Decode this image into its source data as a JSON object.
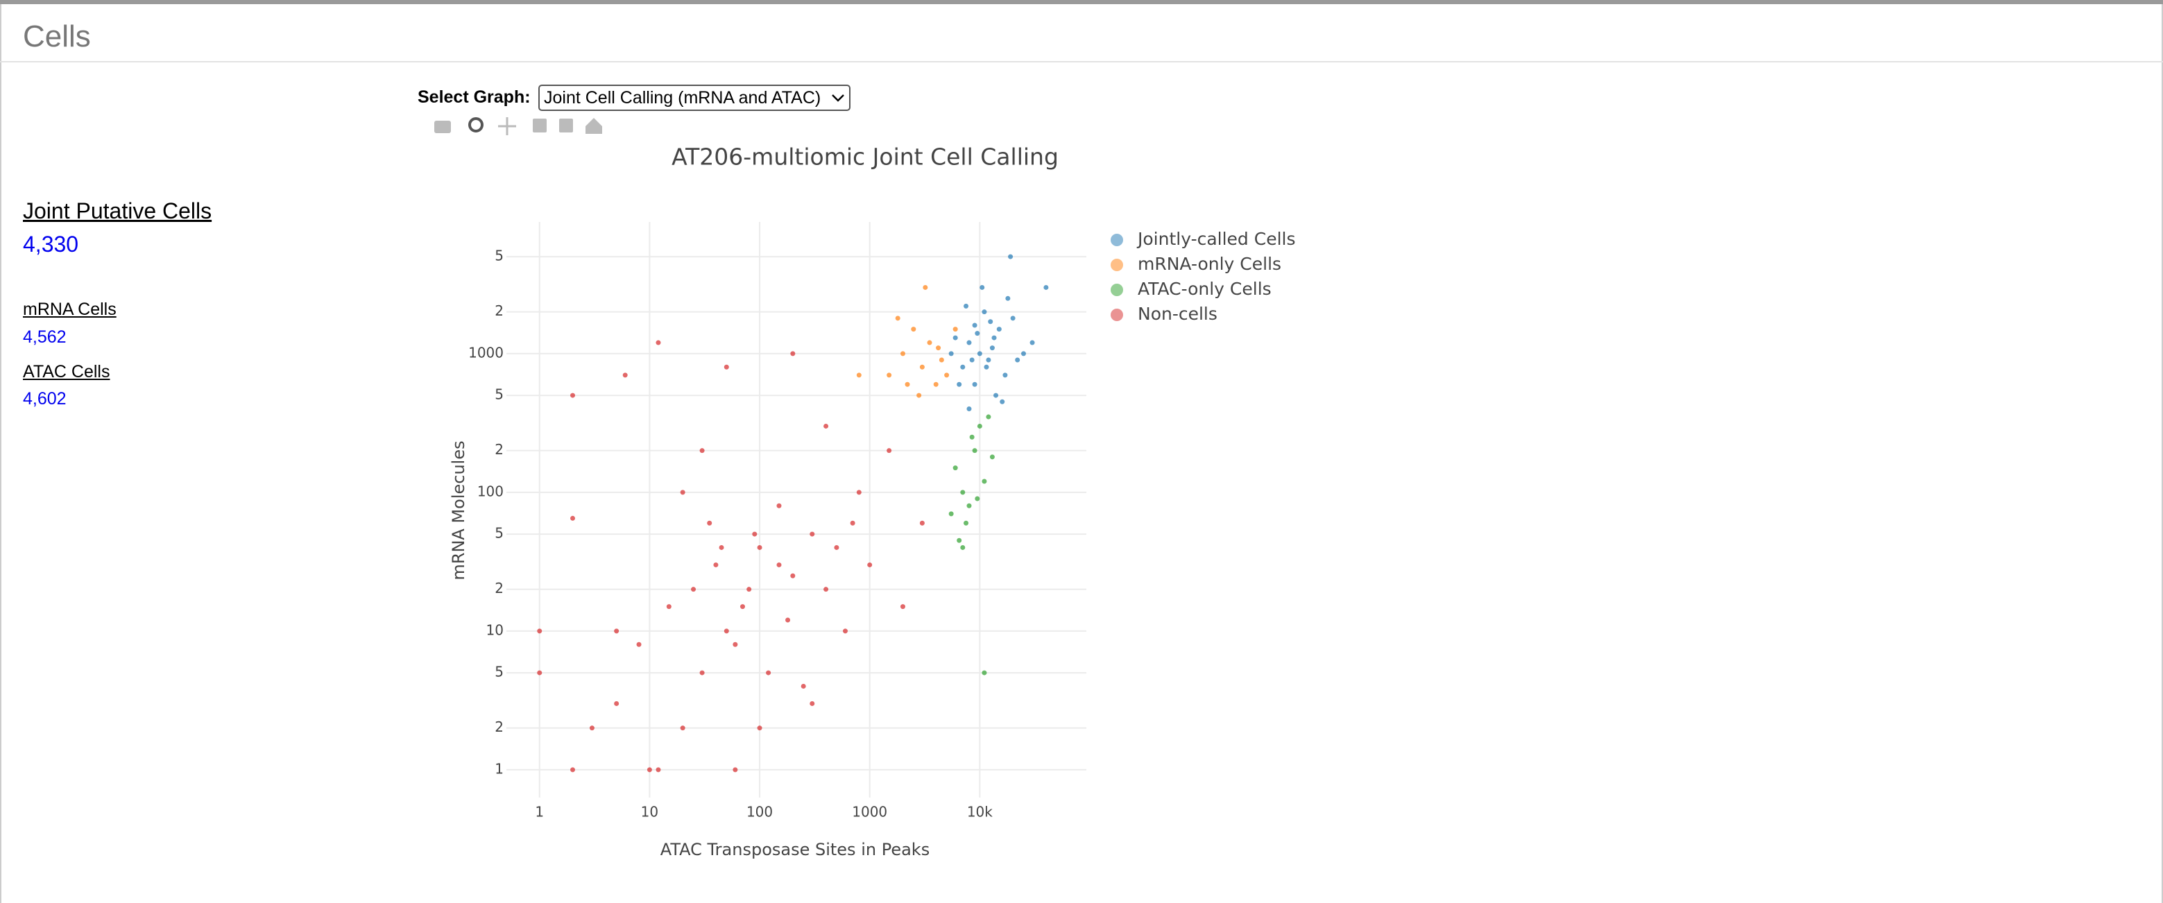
{
  "header": {
    "title": "Cells"
  },
  "sidebar": {
    "items": [
      {
        "label": "Joint Putative Cells",
        "value": "4,330"
      },
      {
        "label": "mRNA Cells",
        "value": "4,562"
      },
      {
        "label": "ATAC Cells",
        "value": "4,602"
      }
    ]
  },
  "selector": {
    "label": "Select Graph:",
    "value": "Joint Cell Calling (mRNA and ATAC)"
  },
  "chart_data": {
    "type": "scatter",
    "title": "AT206-multiomic Joint Cell Calling",
    "x_label": "ATAC Transposase Sites in Peaks",
    "y_label": "mRNA Molecules",
    "xscale": "log",
    "yscale": "log",
    "grid": true,
    "legend": "right",
    "xlim": [
      0.5,
      93000
    ],
    "ylim": [
      0.63,
      8900
    ],
    "xticks": [
      1,
      10,
      100,
      1000,
      {
        "value": 10000,
        "label": "10k"
      }
    ],
    "yticks": [
      1,
      {
        "value": 2,
        "label": "2"
      },
      {
        "value": 5,
        "label": "5"
      },
      10,
      {
        "value": 20,
        "label": "2"
      },
      {
        "value": 50,
        "label": "5"
      },
      100,
      {
        "value": 200,
        "label": "2"
      },
      {
        "value": 500,
        "label": "5"
      },
      1000,
      {
        "value": 2000,
        "label": "2"
      },
      {
        "value": 5000,
        "label": "5"
      }
    ],
    "series": [
      {
        "name": "Jointly-called Cells",
        "color": "#1f77b4",
        "x": [
          10000,
          8000,
          12000,
          15000,
          7000,
          9000,
          11000,
          13000,
          6000,
          20000,
          17000,
          9500,
          8500,
          14000,
          25000,
          5500,
          10500,
          18000,
          7500,
          30000,
          16000,
          12500,
          6500,
          11500,
          19000,
          40000,
          9000,
          13500,
          22000,
          8000
        ],
        "values": [
          1000,
          1200,
          900,
          1500,
          800,
          600,
          2000,
          1100,
          1300,
          1800,
          700,
          1400,
          900,
          500,
          1000,
          1000,
          3000,
          2500,
          2200,
          1200,
          450,
          1700,
          600,
          800,
          5000,
          3000,
          1600,
          1300,
          900,
          400
        ]
      },
      {
        "name": "mRNA-only Cells",
        "color": "#ff7f0e",
        "x": [
          2000,
          3000,
          2500,
          4000,
          1500,
          3500,
          2800,
          4500,
          1800,
          3200,
          2200,
          5000,
          800,
          4200,
          6000
        ],
        "values": [
          1000,
          800,
          1500,
          600,
          700,
          1200,
          500,
          900,
          1800,
          3000,
          600,
          700,
          700,
          1100,
          1500
        ]
      },
      {
        "name": "ATAC-only Cells",
        "color": "#2ca02c",
        "x": [
          7000,
          8000,
          6000,
          9000,
          10000,
          7500,
          11000,
          6500,
          12000,
          8500,
          9500,
          5500,
          13000,
          7000,
          11000
        ],
        "values": [
          100,
          80,
          150,
          200,
          300,
          60,
          120,
          45,
          350,
          250,
          90,
          70,
          180,
          40,
          5
        ]
      },
      {
        "name": "Non-cells",
        "color": "#d62728",
        "x": [
          2,
          2,
          1,
          1,
          2,
          3,
          5,
          10,
          12,
          20,
          30,
          50,
          40,
          80,
          100,
          150,
          200,
          300,
          500,
          400,
          70,
          60,
          120,
          250,
          100,
          60,
          20,
          50,
          200,
          12,
          6,
          30,
          400,
          800,
          1500,
          2000,
          3000,
          1000,
          700,
          150,
          90,
          25,
          15,
          8,
          5,
          35,
          600,
          300,
          180,
          45
        ],
        "values": [
          500,
          1,
          10,
          5,
          65,
          2,
          10,
          1,
          1,
          2,
          5,
          10,
          30,
          20,
          40,
          30,
          25,
          50,
          40,
          20,
          15,
          8,
          5,
          4,
          2,
          1,
          100,
          800,
          1000,
          1200,
          700,
          200,
          300,
          100,
          200,
          15,
          60,
          30,
          60,
          80,
          50,
          20,
          15,
          8,
          3,
          60,
          10,
          3,
          12,
          40
        ]
      }
    ]
  }
}
